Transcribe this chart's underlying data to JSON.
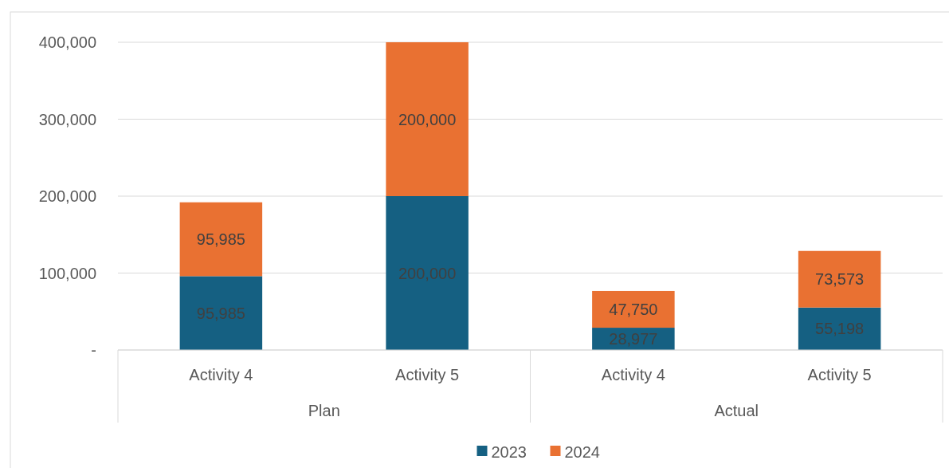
{
  "chart_data": {
    "type": "bar",
    "stacked": true,
    "categories": [
      "Activity 4",
      "Activity 5",
      "Activity 4",
      "Activity 5"
    ],
    "series": [
      {
        "name": "2023",
        "color": "#156082",
        "values": [
          95985,
          200000,
          28977,
          55198
        ],
        "value_labels": [
          "95,985",
          "200,000",
          "28,977",
          "55,198"
        ]
      },
      {
        "name": "2024",
        "color": "#e97132",
        "values": [
          95985,
          200000,
          47750,
          73573
        ],
        "value_labels": [
          "95,985",
          "200,000",
          "47,750",
          "73,573"
        ]
      }
    ],
    "ylim": [
      0,
      400000
    ],
    "yticks": [
      {
        "value": 0,
        "label": "-"
      },
      {
        "value": 100000,
        "label": "100,000"
      },
      {
        "value": 200000,
        "label": "200,000"
      },
      {
        "value": 300000,
        "label": "300,000"
      },
      {
        "value": 400000,
        "label": "400,000"
      }
    ],
    "grid": "y",
    "legend": "bottom",
    "annotations": [
      "Plan",
      "Actual"
    ]
  }
}
